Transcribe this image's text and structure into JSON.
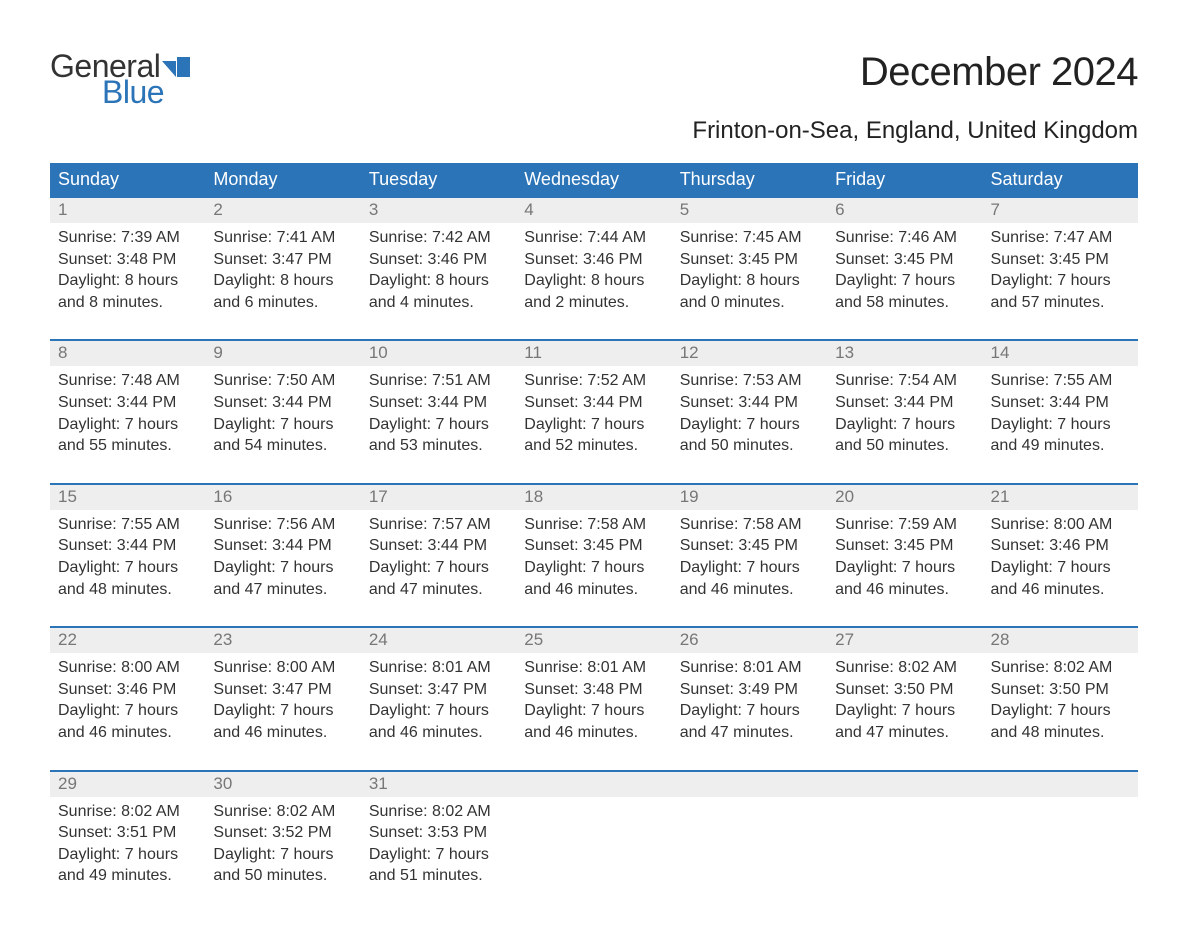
{
  "logo": {
    "general": "General",
    "blue": "Blue",
    "flag_color": "#2b74b8"
  },
  "title": "December 2024",
  "location": "Frinton-on-Sea, England, United Kingdom",
  "colors": {
    "header_bg": "#2b74b8",
    "header_text": "#ffffff",
    "daynum_bg": "#eeeeee",
    "daynum_text": "#777777",
    "body_text": "#333333",
    "background": "#ffffff",
    "week_border": "#2b74b8"
  },
  "typography": {
    "title_fontsize": 40,
    "location_fontsize": 24,
    "dow_fontsize": 18,
    "daynum_fontsize": 17,
    "cell_fontsize": 16,
    "logo_fontsize": 32
  },
  "days_of_week": [
    "Sunday",
    "Monday",
    "Tuesday",
    "Wednesday",
    "Thursday",
    "Friday",
    "Saturday"
  ],
  "weeks": [
    [
      {
        "n": "1",
        "sr": "Sunrise: 7:39 AM",
        "ss": "Sunset: 3:48 PM",
        "d1": "Daylight: 8 hours",
        "d2": "and 8 minutes."
      },
      {
        "n": "2",
        "sr": "Sunrise: 7:41 AM",
        "ss": "Sunset: 3:47 PM",
        "d1": "Daylight: 8 hours",
        "d2": "and 6 minutes."
      },
      {
        "n": "3",
        "sr": "Sunrise: 7:42 AM",
        "ss": "Sunset: 3:46 PM",
        "d1": "Daylight: 8 hours",
        "d2": "and 4 minutes."
      },
      {
        "n": "4",
        "sr": "Sunrise: 7:44 AM",
        "ss": "Sunset: 3:46 PM",
        "d1": "Daylight: 8 hours",
        "d2": "and 2 minutes."
      },
      {
        "n": "5",
        "sr": "Sunrise: 7:45 AM",
        "ss": "Sunset: 3:45 PM",
        "d1": "Daylight: 8 hours",
        "d2": "and 0 minutes."
      },
      {
        "n": "6",
        "sr": "Sunrise: 7:46 AM",
        "ss": "Sunset: 3:45 PM",
        "d1": "Daylight: 7 hours",
        "d2": "and 58 minutes."
      },
      {
        "n": "7",
        "sr": "Sunrise: 7:47 AM",
        "ss": "Sunset: 3:45 PM",
        "d1": "Daylight: 7 hours",
        "d2": "and 57 minutes."
      }
    ],
    [
      {
        "n": "8",
        "sr": "Sunrise: 7:48 AM",
        "ss": "Sunset: 3:44 PM",
        "d1": "Daylight: 7 hours",
        "d2": "and 55 minutes."
      },
      {
        "n": "9",
        "sr": "Sunrise: 7:50 AM",
        "ss": "Sunset: 3:44 PM",
        "d1": "Daylight: 7 hours",
        "d2": "and 54 minutes."
      },
      {
        "n": "10",
        "sr": "Sunrise: 7:51 AM",
        "ss": "Sunset: 3:44 PM",
        "d1": "Daylight: 7 hours",
        "d2": "and 53 minutes."
      },
      {
        "n": "11",
        "sr": "Sunrise: 7:52 AM",
        "ss": "Sunset: 3:44 PM",
        "d1": "Daylight: 7 hours",
        "d2": "and 52 minutes."
      },
      {
        "n": "12",
        "sr": "Sunrise: 7:53 AM",
        "ss": "Sunset: 3:44 PM",
        "d1": "Daylight: 7 hours",
        "d2": "and 50 minutes."
      },
      {
        "n": "13",
        "sr": "Sunrise: 7:54 AM",
        "ss": "Sunset: 3:44 PM",
        "d1": "Daylight: 7 hours",
        "d2": "and 50 minutes."
      },
      {
        "n": "14",
        "sr": "Sunrise: 7:55 AM",
        "ss": "Sunset: 3:44 PM",
        "d1": "Daylight: 7 hours",
        "d2": "and 49 minutes."
      }
    ],
    [
      {
        "n": "15",
        "sr": "Sunrise: 7:55 AM",
        "ss": "Sunset: 3:44 PM",
        "d1": "Daylight: 7 hours",
        "d2": "and 48 minutes."
      },
      {
        "n": "16",
        "sr": "Sunrise: 7:56 AM",
        "ss": "Sunset: 3:44 PM",
        "d1": "Daylight: 7 hours",
        "d2": "and 47 minutes."
      },
      {
        "n": "17",
        "sr": "Sunrise: 7:57 AM",
        "ss": "Sunset: 3:44 PM",
        "d1": "Daylight: 7 hours",
        "d2": "and 47 minutes."
      },
      {
        "n": "18",
        "sr": "Sunrise: 7:58 AM",
        "ss": "Sunset: 3:45 PM",
        "d1": "Daylight: 7 hours",
        "d2": "and 46 minutes."
      },
      {
        "n": "19",
        "sr": "Sunrise: 7:58 AM",
        "ss": "Sunset: 3:45 PM",
        "d1": "Daylight: 7 hours",
        "d2": "and 46 minutes."
      },
      {
        "n": "20",
        "sr": "Sunrise: 7:59 AM",
        "ss": "Sunset: 3:45 PM",
        "d1": "Daylight: 7 hours",
        "d2": "and 46 minutes."
      },
      {
        "n": "21",
        "sr": "Sunrise: 8:00 AM",
        "ss": "Sunset: 3:46 PM",
        "d1": "Daylight: 7 hours",
        "d2": "and 46 minutes."
      }
    ],
    [
      {
        "n": "22",
        "sr": "Sunrise: 8:00 AM",
        "ss": "Sunset: 3:46 PM",
        "d1": "Daylight: 7 hours",
        "d2": "and 46 minutes."
      },
      {
        "n": "23",
        "sr": "Sunrise: 8:00 AM",
        "ss": "Sunset: 3:47 PM",
        "d1": "Daylight: 7 hours",
        "d2": "and 46 minutes."
      },
      {
        "n": "24",
        "sr": "Sunrise: 8:01 AM",
        "ss": "Sunset: 3:47 PM",
        "d1": "Daylight: 7 hours",
        "d2": "and 46 minutes."
      },
      {
        "n": "25",
        "sr": "Sunrise: 8:01 AM",
        "ss": "Sunset: 3:48 PM",
        "d1": "Daylight: 7 hours",
        "d2": "and 46 minutes."
      },
      {
        "n": "26",
        "sr": "Sunrise: 8:01 AM",
        "ss": "Sunset: 3:49 PM",
        "d1": "Daylight: 7 hours",
        "d2": "and 47 minutes."
      },
      {
        "n": "27",
        "sr": "Sunrise: 8:02 AM",
        "ss": "Sunset: 3:50 PM",
        "d1": "Daylight: 7 hours",
        "d2": "and 47 minutes."
      },
      {
        "n": "28",
        "sr": "Sunrise: 8:02 AM",
        "ss": "Sunset: 3:50 PM",
        "d1": "Daylight: 7 hours",
        "d2": "and 48 minutes."
      }
    ],
    [
      {
        "n": "29",
        "sr": "Sunrise: 8:02 AM",
        "ss": "Sunset: 3:51 PM",
        "d1": "Daylight: 7 hours",
        "d2": "and 49 minutes."
      },
      {
        "n": "30",
        "sr": "Sunrise: 8:02 AM",
        "ss": "Sunset: 3:52 PM",
        "d1": "Daylight: 7 hours",
        "d2": "and 50 minutes."
      },
      {
        "n": "31",
        "sr": "Sunrise: 8:02 AM",
        "ss": "Sunset: 3:53 PM",
        "d1": "Daylight: 7 hours",
        "d2": "and 51 minutes."
      },
      {
        "n": "",
        "sr": "",
        "ss": "",
        "d1": "",
        "d2": ""
      },
      {
        "n": "",
        "sr": "",
        "ss": "",
        "d1": "",
        "d2": ""
      },
      {
        "n": "",
        "sr": "",
        "ss": "",
        "d1": "",
        "d2": ""
      },
      {
        "n": "",
        "sr": "",
        "ss": "",
        "d1": "",
        "d2": ""
      }
    ]
  ]
}
